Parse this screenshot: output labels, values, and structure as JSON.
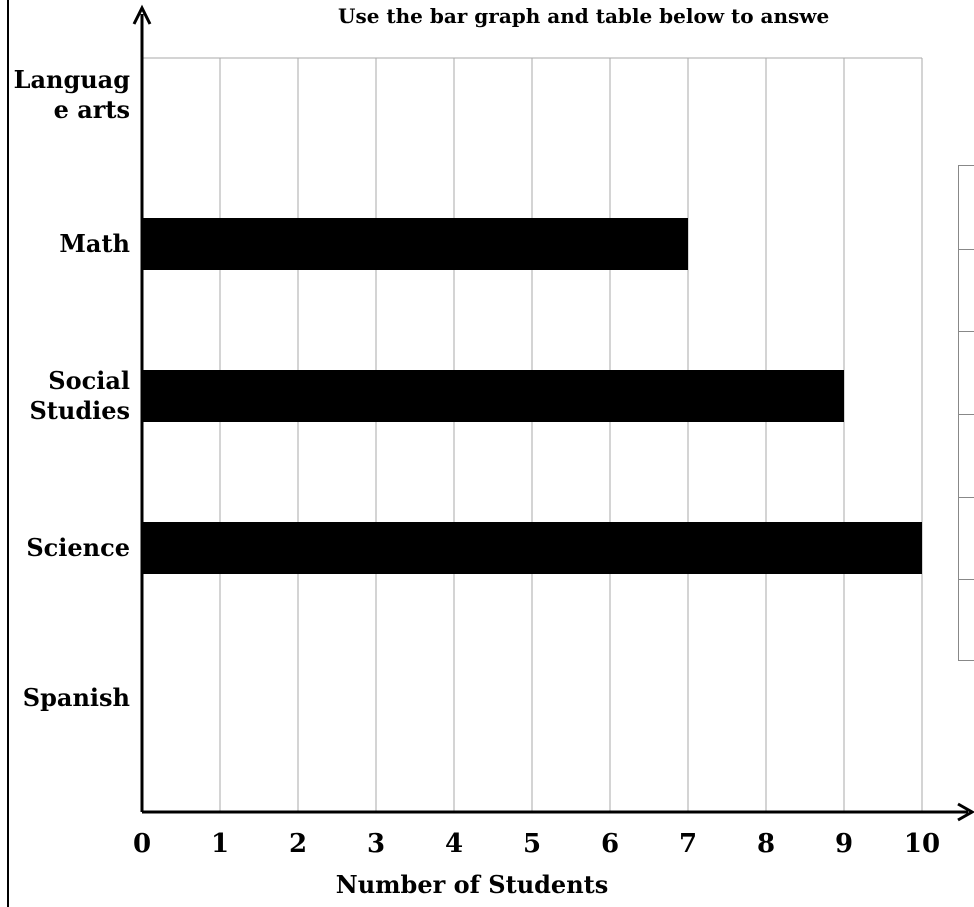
{
  "instruction": "Use the bar graph and table below to answe",
  "chart_data": {
    "type": "bar",
    "orientation": "horizontal",
    "categories": [
      "Languag\ne arts",
      "Math",
      "Social\nStudies",
      "Science",
      "Spanish"
    ],
    "values": [
      0,
      7,
      9,
      10,
      0
    ],
    "xlabel": "Number of Students",
    "ylabel": "",
    "xlim": [
      0,
      10
    ],
    "xticks": [
      0,
      1,
      2,
      3,
      4,
      5,
      6,
      7,
      8,
      9,
      10
    ],
    "grid": true,
    "bar_color": "#000000",
    "grid_color": "#aaaaaa"
  },
  "side_table": {
    "rows": 6
  }
}
